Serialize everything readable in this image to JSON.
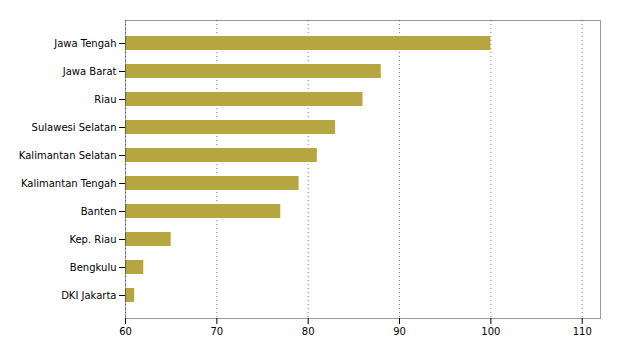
{
  "chart_data": {
    "type": "bar",
    "orientation": "horizontal",
    "categories": [
      "DKI Jakarta",
      "Bengkulu",
      "Kep. Riau",
      "Banten",
      "Kalimantan Tengah",
      "Kalimantan Selatan",
      "Sulawesi Selatan",
      "Riau",
      "Jawa Barat",
      "Jawa Tengah"
    ],
    "values": [
      61,
      62,
      65,
      77,
      79,
      81,
      83,
      86,
      88,
      100
    ],
    "color": "#b5a642",
    "xlim": [
      60,
      112
    ],
    "xticks": [
      60,
      70,
      80,
      90,
      100,
      110
    ],
    "grid": true
  }
}
